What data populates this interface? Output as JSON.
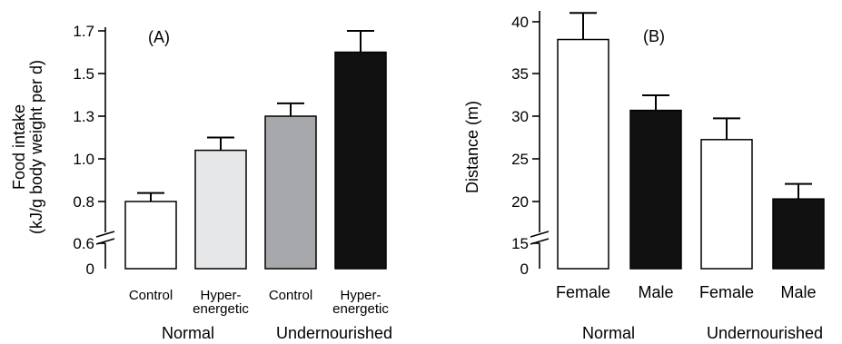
{
  "chart_data": [
    {
      "type": "bar",
      "panel_label": "(A)",
      "ylabel_lines": [
        "Food intake",
        "(kJ/g body weight per d)"
      ],
      "yticks": [
        "0",
        "0.6",
        "0.8",
        "1.0",
        "1.3",
        "1.5",
        "1.7"
      ],
      "y_axis_break": true,
      "categories": [
        [
          "Control"
        ],
        [
          "Hyper-",
          "energetic"
        ],
        [
          "Control"
        ],
        [
          "Hyper-",
          "energetic"
        ]
      ],
      "groups": [
        "Normal",
        "Undernourished"
      ],
      "values": [
        0.8,
        1.04,
        1.2,
        1.5
      ],
      "errors": [
        0.04,
        0.06,
        0.06,
        0.1
      ],
      "bar_colors": [
        "#ffffff",
        "#e6e7e9",
        "#a6a8ab",
        "#111111"
      ]
    },
    {
      "type": "bar",
      "panel_label": "(B)",
      "ylabel_lines": [
        "Distance (m)"
      ],
      "yticks": [
        "0",
        "15",
        "20",
        "25",
        "30",
        "35",
        "40"
      ],
      "y_axis_break": true,
      "categories": [
        [
          "Female"
        ],
        [
          "Male"
        ],
        [
          "Female"
        ],
        [
          "Male"
        ]
      ],
      "groups": [
        "Normal",
        "Undernourished"
      ],
      "values": [
        38,
        30,
        26.7,
        20
      ],
      "errors": [
        3,
        1.7,
        2.4,
        1.7
      ],
      "bar_colors": [
        "#ffffff",
        "#111111",
        "#ffffff",
        "#111111"
      ]
    }
  ]
}
